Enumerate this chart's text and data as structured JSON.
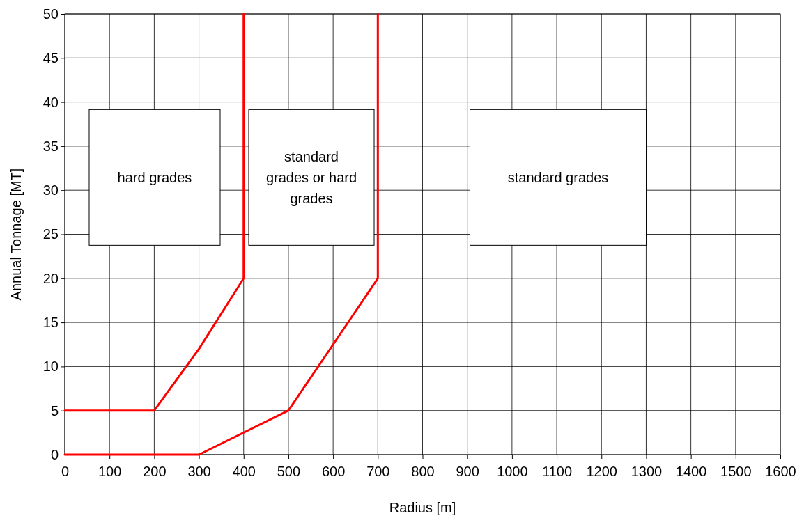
{
  "chart_data": {
    "type": "line",
    "xlabel": "Radius [m]",
    "ylabel": "Annual Tonnage [MT]",
    "xlim": [
      0,
      1600
    ],
    "xticks": [
      0,
      100,
      200,
      300,
      400,
      500,
      600,
      700,
      800,
      900,
      1000,
      1100,
      1200,
      1300,
      1400,
      1500,
      1600
    ],
    "ylim": [
      0,
      50
    ],
    "yticks": [
      0,
      5,
      10,
      15,
      20,
      25,
      30,
      35,
      40,
      45,
      50
    ],
    "grid": true,
    "marker": "none",
    "line_style": "solid",
    "series": [
      {
        "color": "#ff0000",
        "x": [
          0,
          200,
          300,
          400,
          400
        ],
        "values": [
          5,
          5,
          12,
          20,
          50
        ]
      },
      {
        "color": "#ff0000",
        "x": [
          0,
          300,
          500,
          600,
          700,
          700
        ],
        "values": [
          0,
          0,
          5,
          12.5,
          20,
          50
        ]
      }
    ],
    "annotations": [
      "hard grades",
      "standard grades or hard grades",
      "standard grades"
    ]
  }
}
